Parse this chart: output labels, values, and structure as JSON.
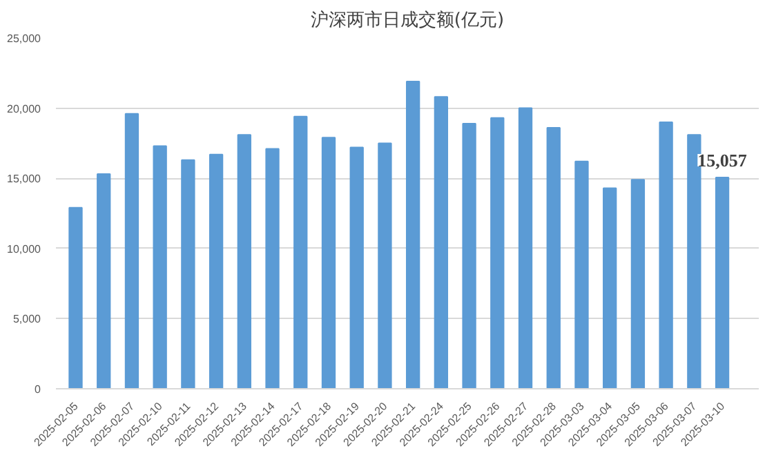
{
  "chart_data": {
    "type": "bar",
    "title": "沪深两市日成交额(亿元)",
    "categories": [
      "2025-02-05",
      "2025-02-06",
      "2025-02-07",
      "2025-02-10",
      "2025-02-11",
      "2025-02-12",
      "2025-02-13",
      "2025-02-14",
      "2025-02-17",
      "2025-02-18",
      "2025-02-19",
      "2025-02-20",
      "2025-02-21",
      "2025-02-24",
      "2025-02-25",
      "2025-02-26",
      "2025-02-27",
      "2025-02-28",
      "2025-03-03",
      "2025-03-04",
      "2025-03-05",
      "2025-03-06",
      "2025-03-07",
      "2025-03-10"
    ],
    "values": [
      12900,
      15300,
      19600,
      17300,
      16300,
      16700,
      18100,
      17100,
      19400,
      17900,
      17200,
      17500,
      21900,
      20800,
      18900,
      19300,
      20000,
      18600,
      16200,
      14300,
      14900,
      19000,
      18100,
      15057
    ],
    "value_labels": [
      null,
      null,
      null,
      null,
      null,
      null,
      null,
      null,
      null,
      null,
      null,
      null,
      null,
      null,
      null,
      null,
      null,
      null,
      null,
      null,
      null,
      null,
      null,
      "15,057"
    ],
    "color": "#5b9bd5",
    "ylim": [
      0,
      25000
    ],
    "yticks": [
      {
        "value": 0,
        "label": "0"
      },
      {
        "value": 5000,
        "label": "5,000"
      },
      {
        "value": 10000,
        "label": "10,000"
      },
      {
        "value": 15000,
        "label": "15,000"
      },
      {
        "value": 20000,
        "label": "20,000"
      },
      {
        "value": 25000,
        "label": "25,000"
      }
    ],
    "grid": "y"
  }
}
